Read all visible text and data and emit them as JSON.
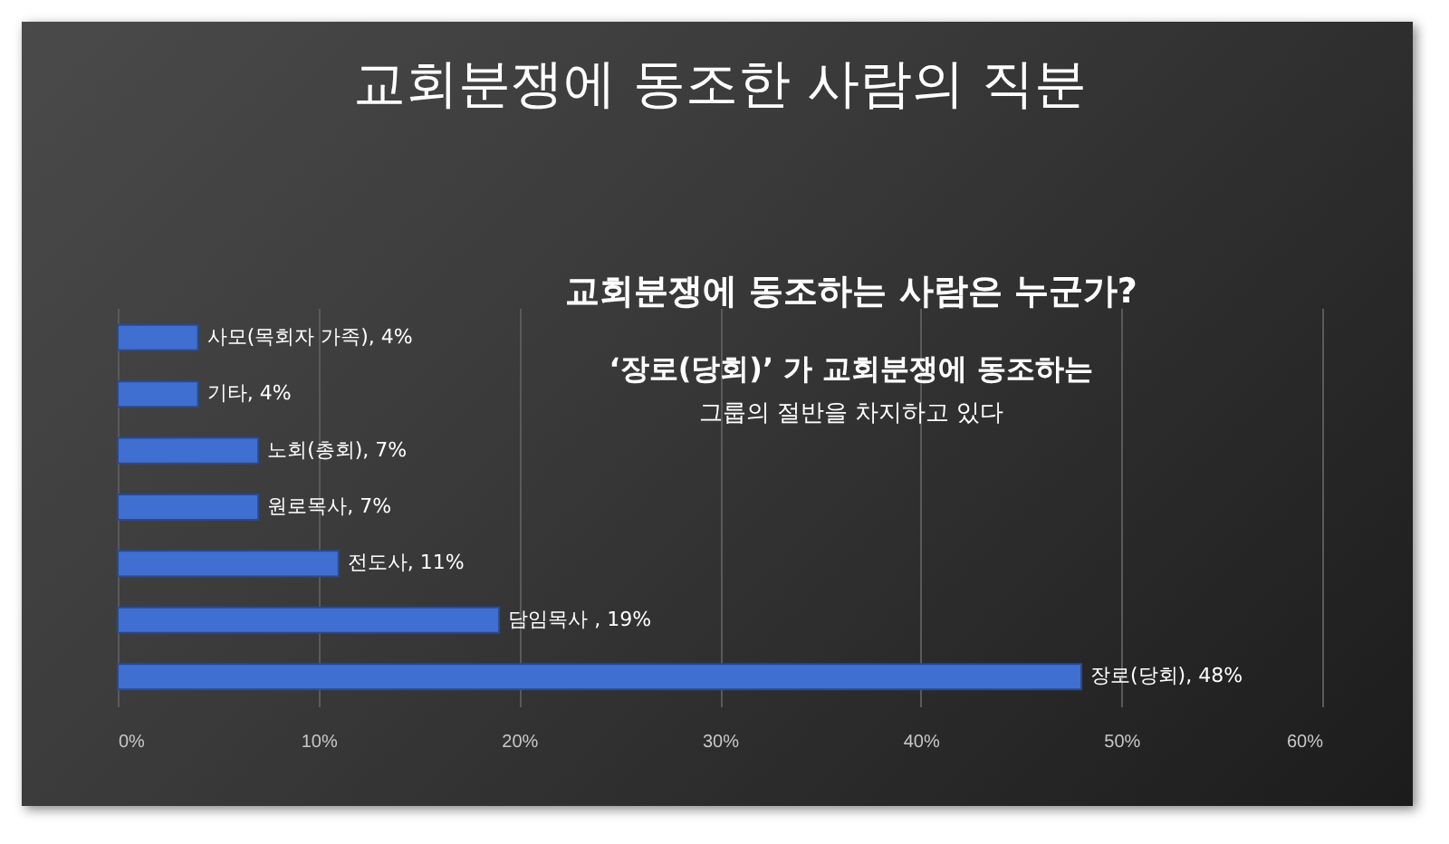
{
  "chart_data": {
    "type": "bar",
    "orientation": "horizontal",
    "title": "교회분쟁에 동조한 사람의 직분",
    "annotations": [
      "교회분쟁에 동조하는 사람은 누군가?",
      "‘장로(당회)’ 가 교회분쟁에 동조하는",
      "그룹의 절반을 차지하고 있다"
    ],
    "categories": [
      null,
      null,
      null,
      null,
      null,
      null,
      null
    ],
    "values": [
      4,
      4,
      7,
      7,
      11,
      19,
      48
    ],
    "value_labels": [
      "사모(목회자 가족), 4%",
      "기타, 4%",
      "노회(총회), 7%",
      "원로목사, 7%",
      "전도사, 11%",
      "담임목사 , 19%",
      "장로(당회), 48%"
    ],
    "color": "#3f6fd0",
    "xlim": [
      0,
      60
    ],
    "xticks": [
      {
        "value": 0,
        "label": "0%"
      },
      {
        "value": 10,
        "label": "10%"
      },
      {
        "value": 20,
        "label": "20%"
      },
      {
        "value": 30,
        "label": "30%"
      },
      {
        "value": 40,
        "label": "40%"
      },
      {
        "value": 50,
        "label": "50%"
      },
      {
        "value": 60,
        "label": "60%"
      }
    ],
    "grid": "x",
    "tick_labels": "x"
  }
}
